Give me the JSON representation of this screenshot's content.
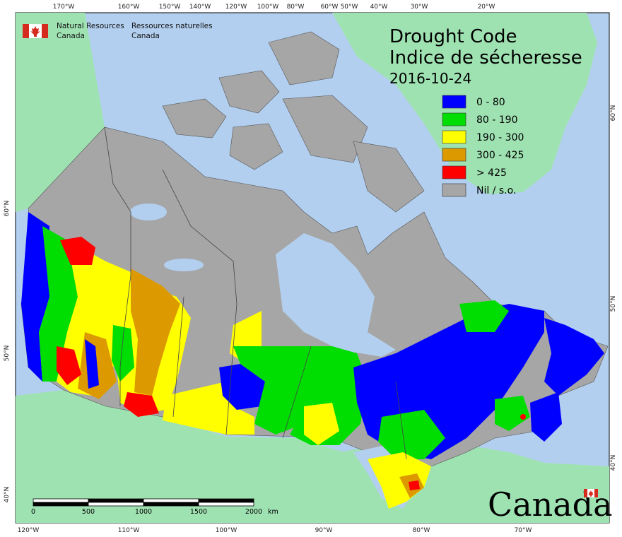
{
  "title": {
    "line1": "Drought Code",
    "line2": "Indice de sécheresse",
    "date": "2016-10-24"
  },
  "agency": {
    "en_line1": "Natural Resources",
    "en_line2": "Canada",
    "fr_line1": "Ressources naturelles",
    "fr_line2": "Canada"
  },
  "wordmark": "Canada",
  "legend": [
    {
      "label": "0 - 80",
      "color": "#0000ff"
    },
    {
      "label": "80 - 190",
      "color": "#00dd00"
    },
    {
      "label": "190 - 300",
      "color": "#ffff00"
    },
    {
      "label": "300 - 425",
      "color": "#dd9900"
    },
    {
      "label": "> 425",
      "color": "#ff0000"
    },
    {
      "label": "Nil / s.o.",
      "color": "#a6a6a6"
    }
  ],
  "scale_bar": {
    "labels": [
      "0",
      "500",
      "1000",
      "1500",
      "2000"
    ],
    "unit": "km"
  },
  "graticule": {
    "top": [
      "170°W",
      "160°W",
      "150°W",
      "140°W",
      "120°W",
      "100°W",
      "80°W",
      "60°W",
      "50°W",
      "40°W",
      "30°W",
      "20°W"
    ],
    "bottom": [
      "120°W",
      "110°W",
      "100°W",
      "90°W",
      "80°W",
      "70°W"
    ],
    "left": [
      "60°N",
      "50°N",
      "40°N"
    ],
    "right": [
      "60°N",
      "50°N",
      "40°N"
    ]
  },
  "colors": {
    "water": "#b3cfef",
    "foreign_land": "#9fe2b2",
    "nil": "#a6a6a6",
    "border": "#444444"
  }
}
